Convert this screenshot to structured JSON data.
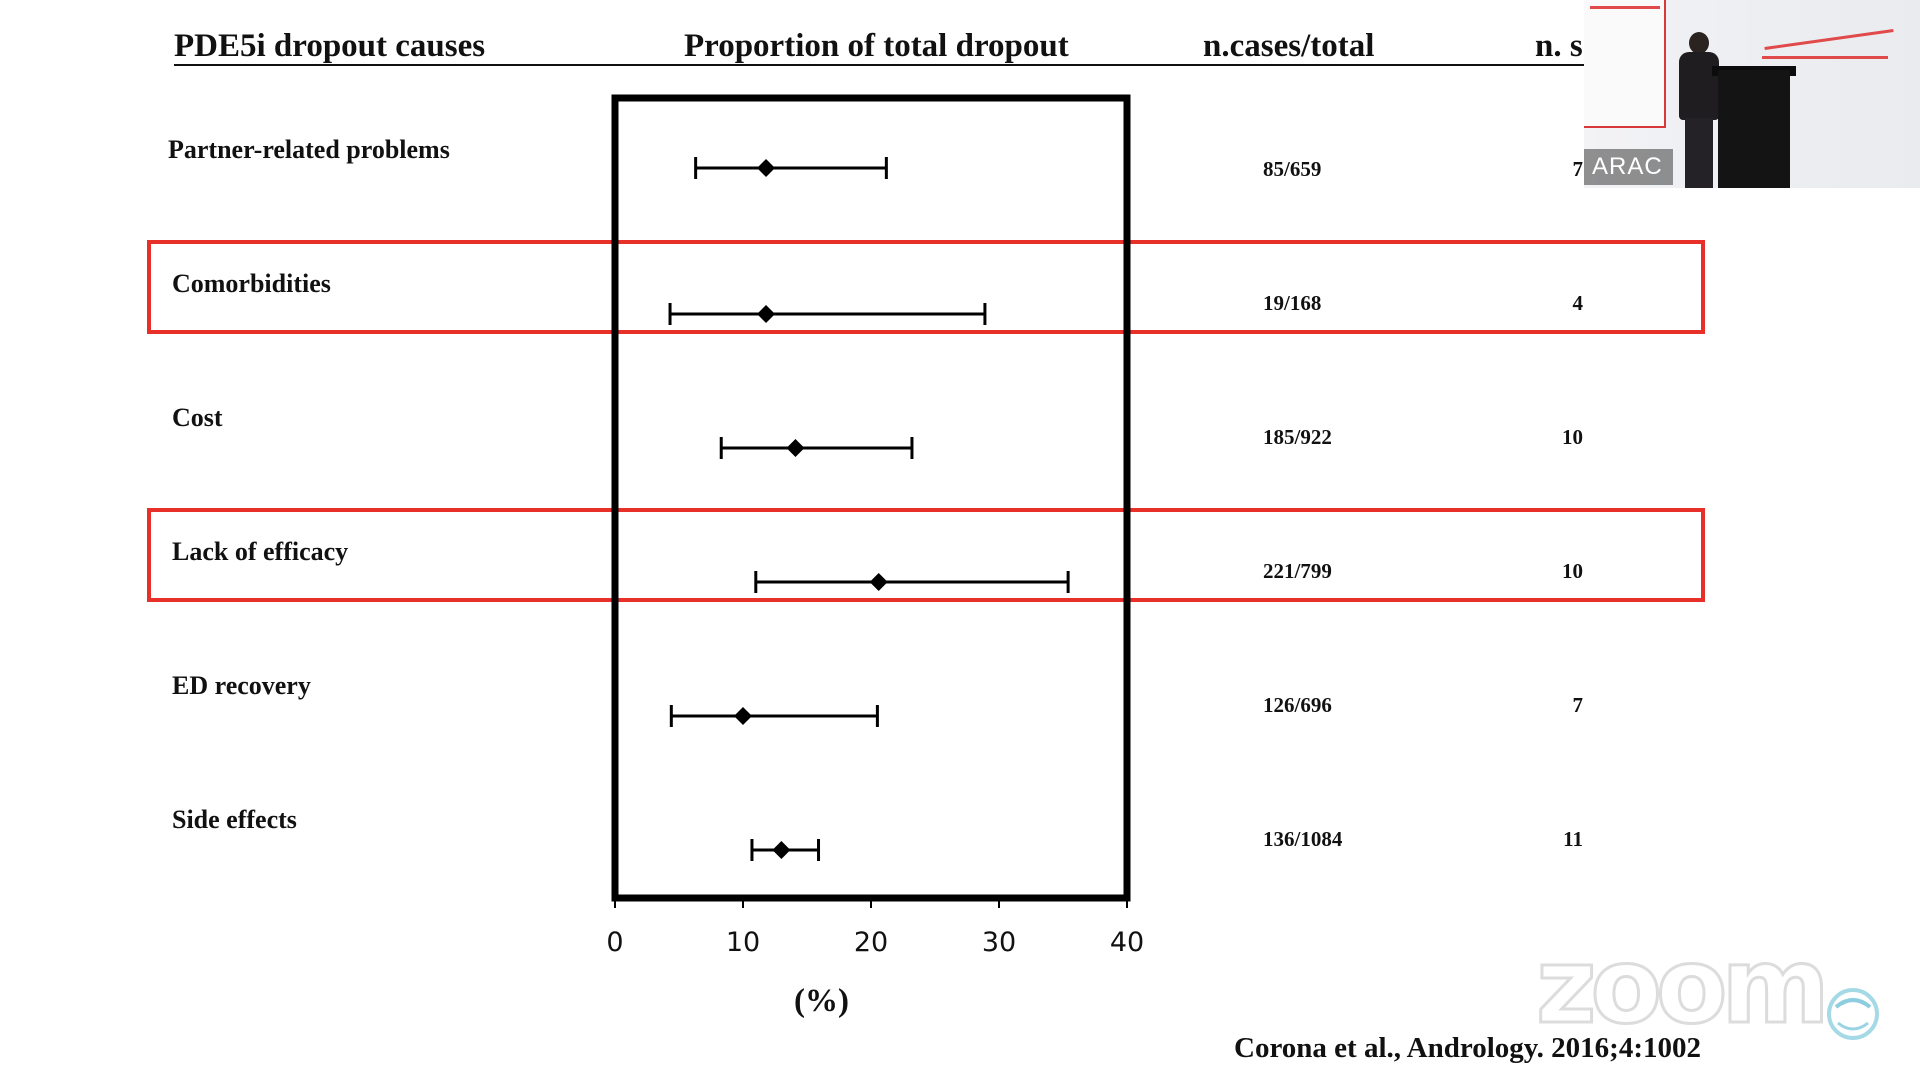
{
  "headers": {
    "causes": "PDE5i dropout causes",
    "proportion": "Proportion of total dropout",
    "cases": "n.cases/total",
    "studies": "n. s"
  },
  "chart_data": {
    "type": "forest",
    "xlabel": "(%)",
    "xlim": [
      0,
      40
    ],
    "x_ticks": [
      "0",
      "10",
      "20",
      "30",
      "40"
    ],
    "rows": [
      {
        "label": "Partner-related problems",
        "estimate": 11.8,
        "ci_low": 6.3,
        "ci_high": 21.2,
        "cases_total": "85/659",
        "n_studies": "7",
        "highlighted": false
      },
      {
        "label": "Comorbidities",
        "estimate": 11.8,
        "ci_low": 4.3,
        "ci_high": 28.9,
        "cases_total": "19/168",
        "n_studies": "4",
        "highlighted": true
      },
      {
        "label": "Cost",
        "estimate": 14.1,
        "ci_low": 8.3,
        "ci_high": 23.2,
        "cases_total": "185/922",
        "n_studies": "10",
        "highlighted": false
      },
      {
        "label": "Lack of efficacy",
        "estimate": 20.6,
        "ci_low": 11.0,
        "ci_high": 35.4,
        "cases_total": "221/799",
        "n_studies": "10",
        "highlighted": true
      },
      {
        "label": "ED recovery",
        "estimate": 10.0,
        "ci_low": 4.4,
        "ci_high": 20.5,
        "cases_total": "126/696",
        "n_studies": "7",
        "highlighted": false
      },
      {
        "label": "Side effects",
        "estimate": 13.0,
        "ci_low": 10.7,
        "ci_high": 15.9,
        "cases_total": "136/1084",
        "n_studies": "11",
        "highlighted": false
      }
    ]
  },
  "citation": "Corona et al., Andrology. 2016;4:1002",
  "video": {
    "participant_name": "ARAC",
    "app_watermark": "zoom"
  },
  "colors": {
    "highlight": "#e8302a",
    "text": "#111111"
  }
}
